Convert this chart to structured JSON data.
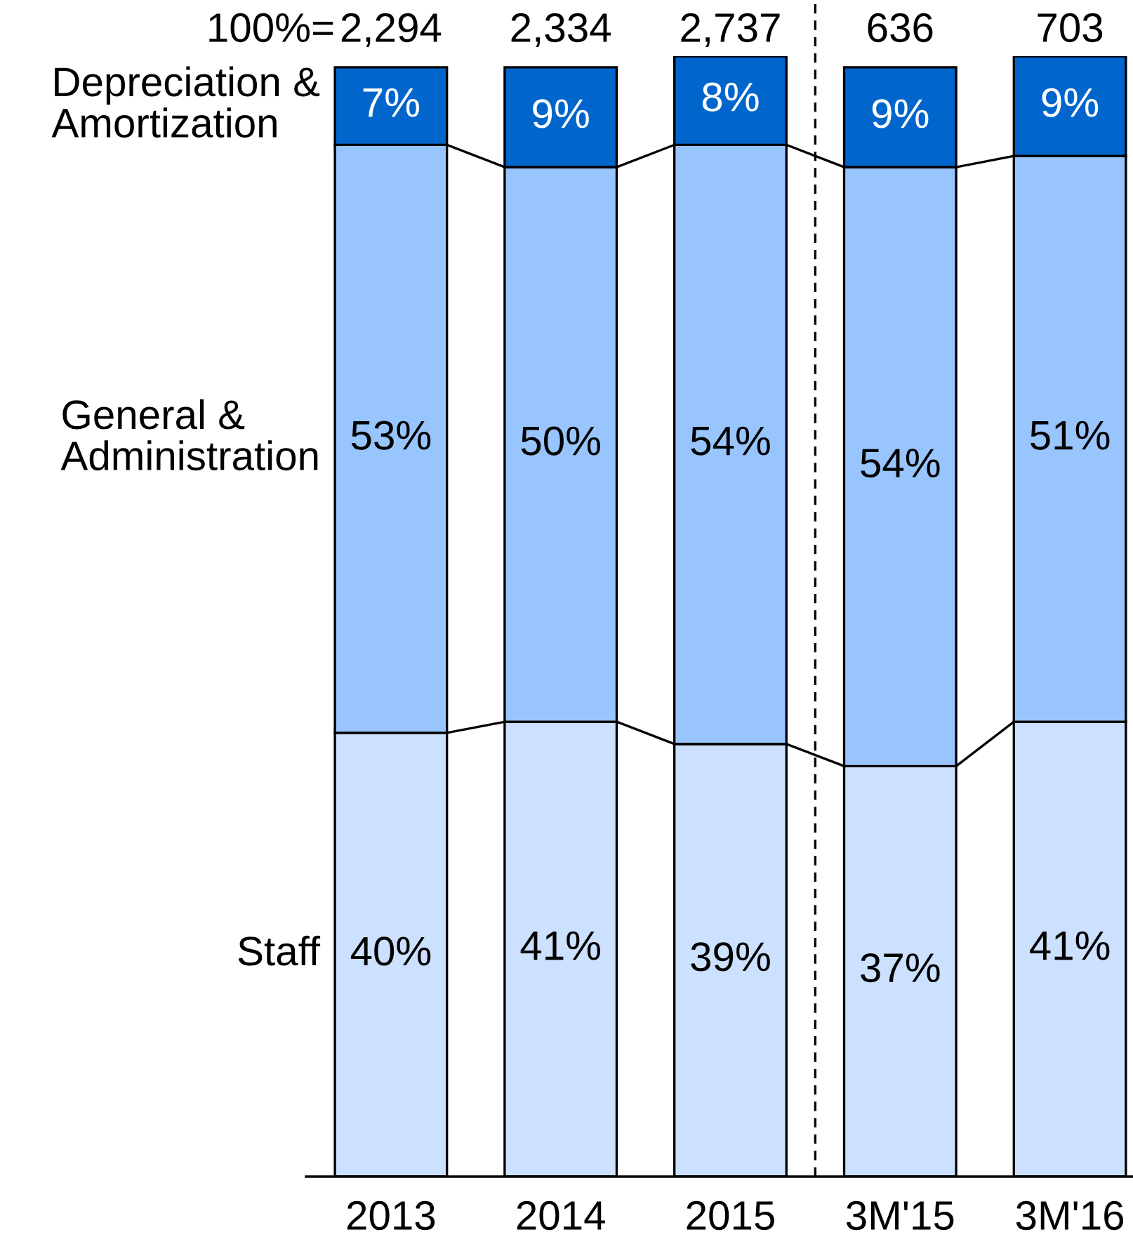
{
  "chart_data": {
    "type": "bar",
    "stacked": true,
    "categories": [
      "2013",
      "2014",
      "2015",
      "3M'15",
      "3M'16"
    ],
    "series": [
      {
        "name": "Staff",
        "color": "#cce0ff",
        "values": [
          40,
          41,
          39,
          37,
          41
        ],
        "value_labels": [
          "40%",
          "41%",
          "39%",
          "37%",
          "41%"
        ]
      },
      {
        "name": "General &\nAdministration",
        "color": "#99c5ff",
        "values": [
          53,
          50,
          54,
          54,
          51
        ],
        "value_labels": [
          "53%",
          "50%",
          "54%",
          "54%",
          "51%"
        ]
      },
      {
        "name": "Depreciation &\nAmortization",
        "color": "#0066cc",
        "values": [
          7,
          9,
          8,
          9,
          9
        ],
        "value_labels": [
          "7%",
          "9%",
          "8%",
          "9%",
          "9%"
        ]
      }
    ],
    "annotations": [
      "100%=",
      "2,294",
      "2,334",
      "2,737",
      "636",
      "703"
    ],
    "legend": false,
    "grid": false
  }
}
